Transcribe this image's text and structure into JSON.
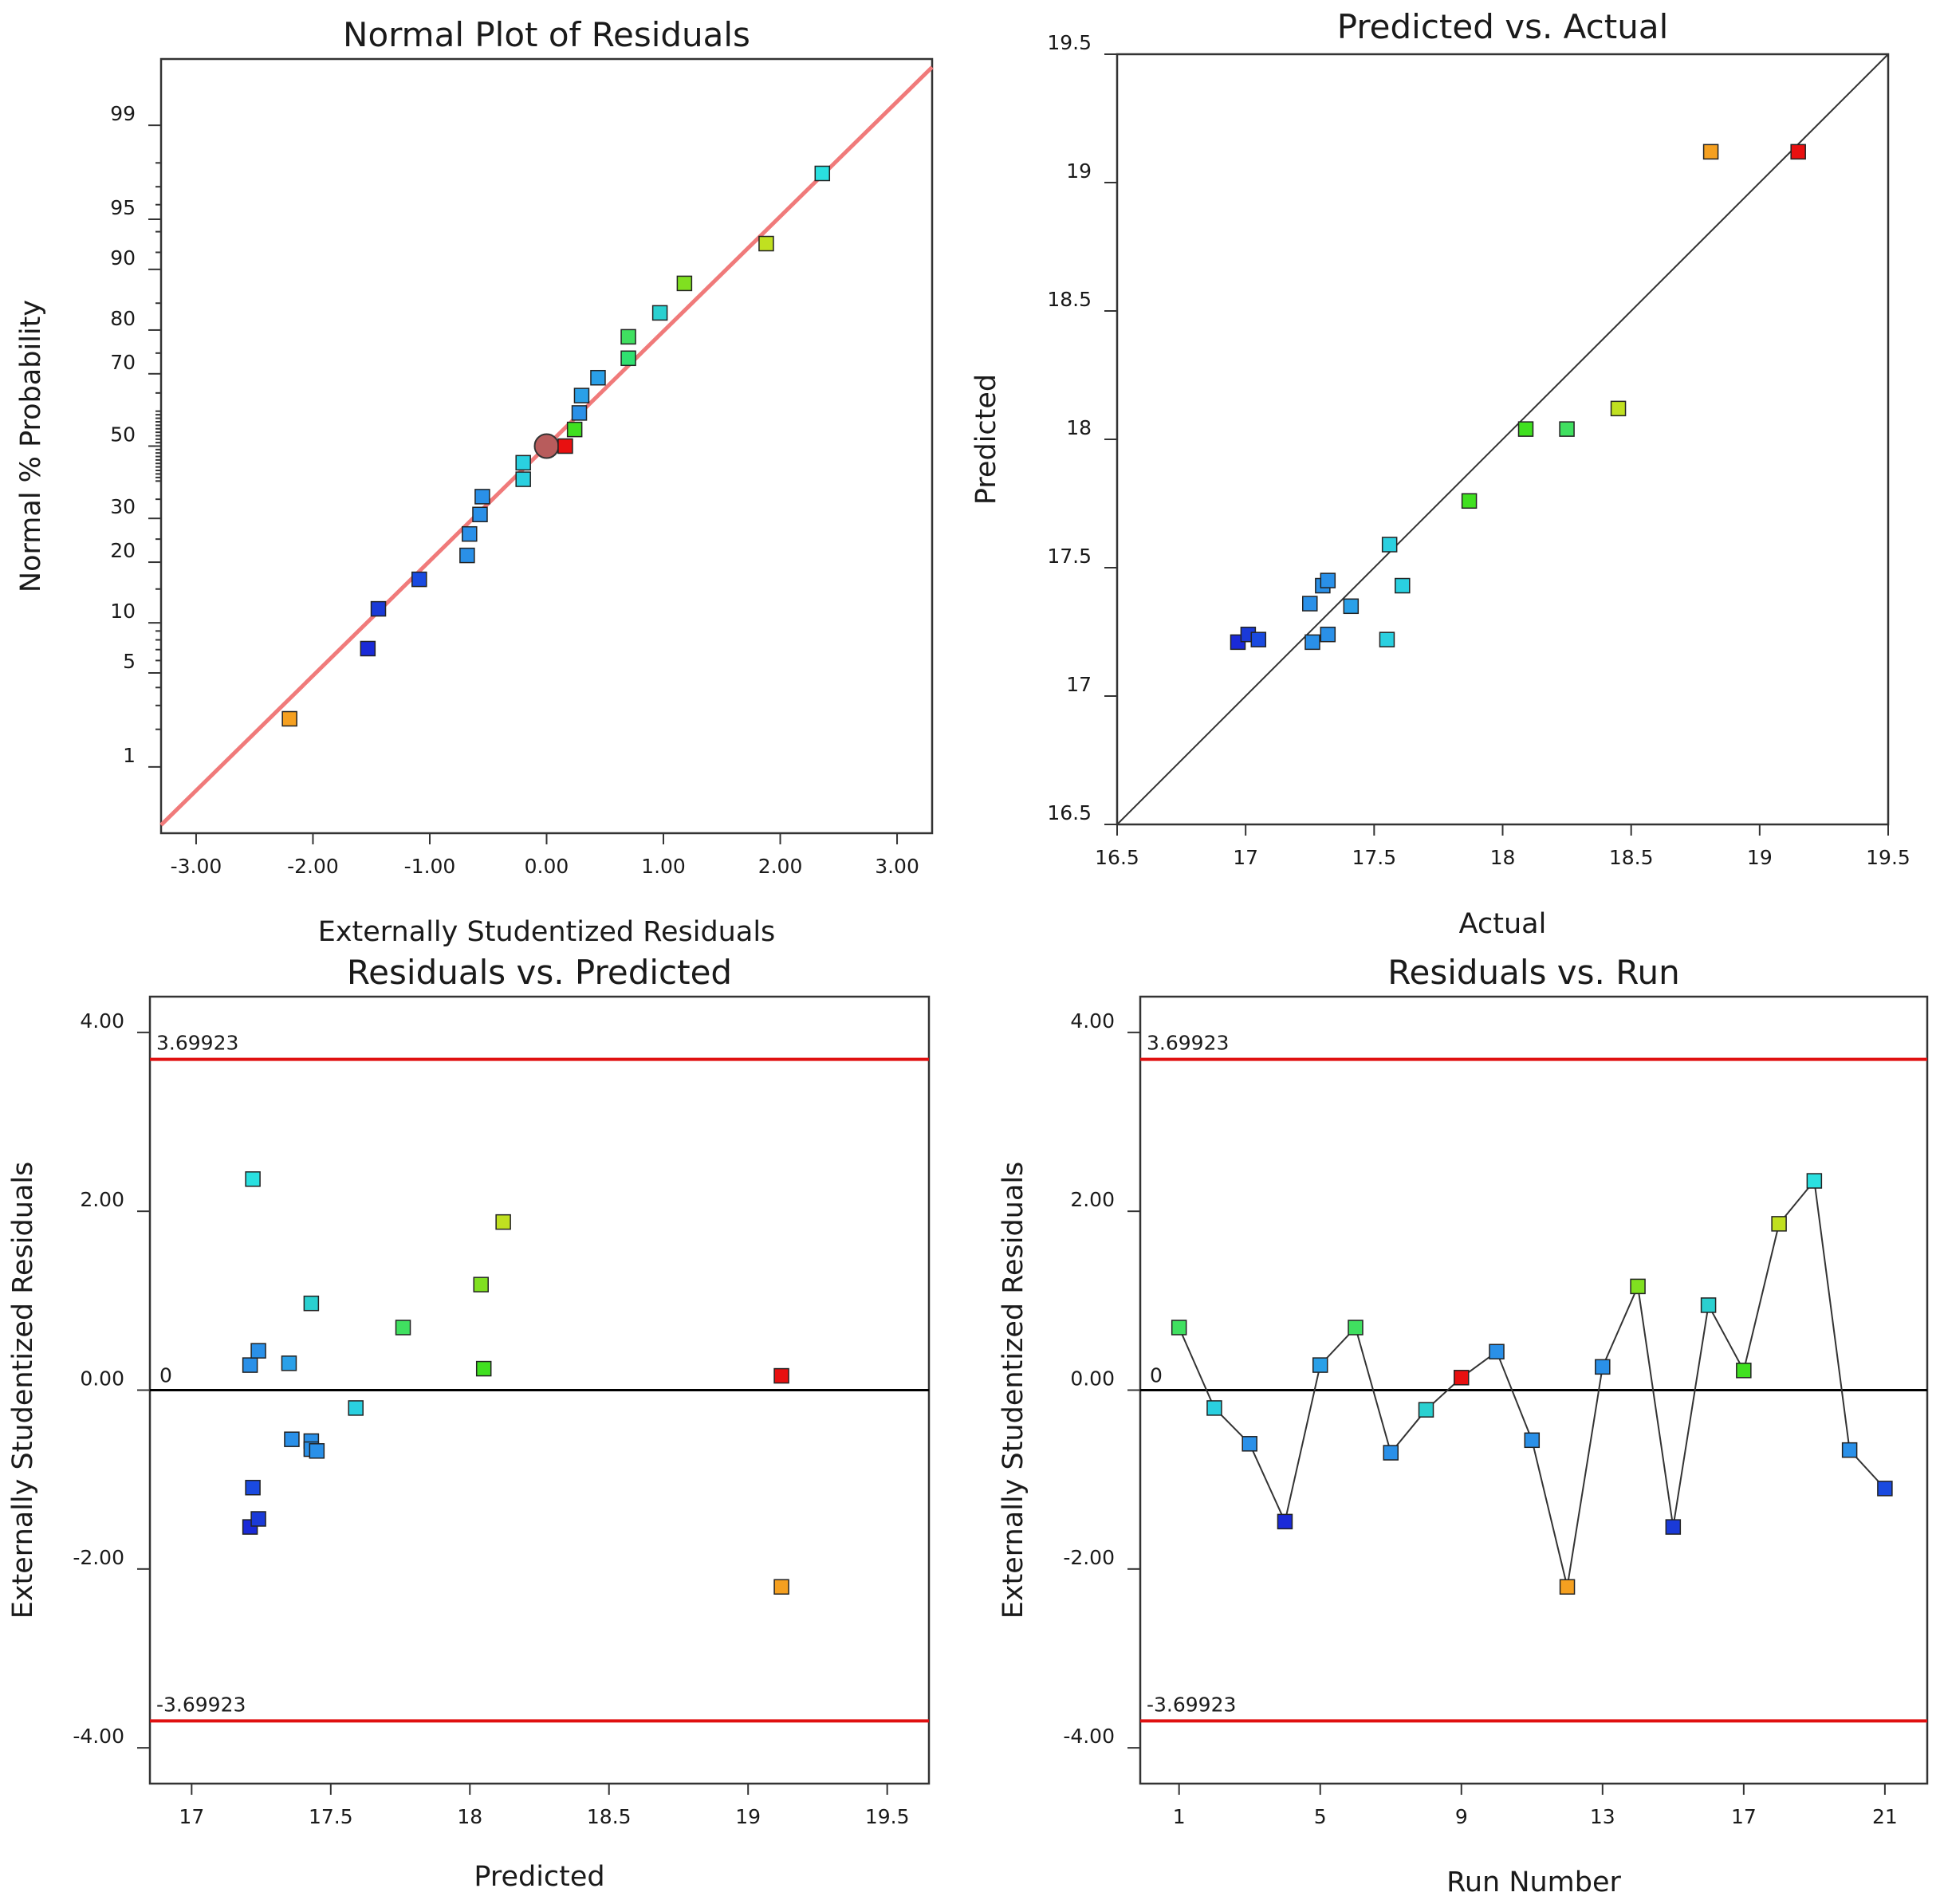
{
  "chart_data": [
    {
      "type": "scatter",
      "title": "Normal Plot of Residuals",
      "xlabel": "Externally Studentized Residuals",
      "ylabel": "Normal % Probability",
      "xlim": [
        -3.3,
        3.3
      ],
      "x_ticks": [
        "-3.00",
        "-2.00",
        "-1.00",
        "0.00",
        "1.00",
        "2.00",
        "3.00"
      ],
      "x_tick_values": [
        -3,
        -2,
        -1,
        0,
        1,
        2,
        3
      ],
      "y_scale": "normal-probability",
      "y_ticks": [
        "1",
        "5",
        "10",
        "20",
        "30",
        "50",
        "70",
        "80",
        "90",
        "95",
        "99"
      ],
      "y_tick_values": [
        1,
        5,
        10,
        20,
        30,
        50,
        70,
        80,
        90,
        95,
        99
      ],
      "reference_line": {
        "color": "#f07a7a",
        "from": [
          -3.3,
          0.3
        ],
        "to": [
          3.3,
          99.7
        ]
      },
      "center_marker": {
        "x": 0,
        "y": 50,
        "color": "#b85c5c"
      },
      "points": [
        {
          "x": -2.2,
          "y": 2.4,
          "color": "#f5a020"
        },
        {
          "x": -1.53,
          "y": 7.1,
          "color": "#1a2ad8"
        },
        {
          "x": -1.44,
          "y": 11.9,
          "color": "#1a3ad8"
        },
        {
          "x": -1.09,
          "y": 16.7,
          "color": "#1a4ae0"
        },
        {
          "x": -0.68,
          "y": 21.4,
          "color": "#2a90e8"
        },
        {
          "x": -0.66,
          "y": 26.2,
          "color": "#2a90e8"
        },
        {
          "x": -0.57,
          "y": 31.0,
          "color": "#2a90e8"
        },
        {
          "x": -0.55,
          "y": 35.7,
          "color": "#2a90e8"
        },
        {
          "x": -0.2,
          "y": 40.5,
          "color": "#2ad0e0"
        },
        {
          "x": -0.2,
          "y": 45.2,
          "color": "#2ad0e0"
        },
        {
          "x": 0.16,
          "y": 50.0,
          "color": "#e81010"
        },
        {
          "x": 0.24,
          "y": 54.8,
          "color": "#40e020"
        },
        {
          "x": 0.28,
          "y": 59.5,
          "color": "#2a90e8"
        },
        {
          "x": 0.3,
          "y": 64.3,
          "color": "#2aa0e8"
        },
        {
          "x": 0.44,
          "y": 69.0,
          "color": "#2aa0e8"
        },
        {
          "x": 0.7,
          "y": 73.8,
          "color": "#30e070"
        },
        {
          "x": 0.7,
          "y": 78.6,
          "color": "#40e060"
        },
        {
          "x": 0.97,
          "y": 83.3,
          "color": "#2ad0d0"
        },
        {
          "x": 1.18,
          "y": 88.1,
          "color": "#80e020"
        },
        {
          "x": 1.88,
          "y": 92.9,
          "color": "#c0e020"
        },
        {
          "x": 2.36,
          "y": 97.6,
          "color": "#2ae0e0"
        }
      ]
    },
    {
      "type": "scatter",
      "title": "Predicted vs. Actual",
      "xlabel": "Actual",
      "ylabel": "Predicted",
      "xlim": [
        16.5,
        19.5
      ],
      "ylim": [
        16.5,
        19.5
      ],
      "x_ticks": [
        "16.5",
        "17",
        "17.5",
        "18",
        "18.5",
        "19",
        "19.5"
      ],
      "x_tick_values": [
        16.5,
        17,
        17.5,
        18,
        18.5,
        19,
        19.5
      ],
      "y_ticks": [
        "16.5",
        "17",
        "17.5",
        "18",
        "18.5",
        "19",
        "19.5"
      ],
      "y_tick_values": [
        16.5,
        17,
        17.5,
        18,
        18.5,
        19,
        19.5
      ],
      "reference_line": {
        "color": "#333333",
        "from": [
          16.5,
          16.5
        ],
        "to": [
          19.5,
          19.5
        ]
      },
      "points": [
        {
          "x": 16.97,
          "y": 17.21,
          "color": "#1a2ad8"
        },
        {
          "x": 17.01,
          "y": 17.24,
          "color": "#1a3ad8"
        },
        {
          "x": 17.05,
          "y": 17.22,
          "color": "#1a4ae0"
        },
        {
          "x": 17.25,
          "y": 17.36,
          "color": "#2a90e8"
        },
        {
          "x": 17.26,
          "y": 17.21,
          "color": "#2a90e8"
        },
        {
          "x": 17.3,
          "y": 17.43,
          "color": "#2a90e8"
        },
        {
          "x": 17.32,
          "y": 17.45,
          "color": "#2a90e8"
        },
        {
          "x": 17.32,
          "y": 17.24,
          "color": "#2a90e8"
        },
        {
          "x": 17.41,
          "y": 17.35,
          "color": "#2aa0e8"
        },
        {
          "x": 17.55,
          "y": 17.22,
          "color": "#2ad0e0"
        },
        {
          "x": 17.56,
          "y": 17.59,
          "color": "#2ad0e0"
        },
        {
          "x": 17.61,
          "y": 17.43,
          "color": "#2ad0e0"
        },
        {
          "x": 17.87,
          "y": 17.76,
          "color": "#40e020"
        },
        {
          "x": 18.09,
          "y": 18.04,
          "color": "#40e020"
        },
        {
          "x": 18.25,
          "y": 18.04,
          "color": "#40e060"
        },
        {
          "x": 18.45,
          "y": 18.12,
          "color": "#c0e020"
        },
        {
          "x": 18.81,
          "y": 19.12,
          "color": "#f5a020"
        },
        {
          "x": 19.15,
          "y": 19.12,
          "color": "#e81010"
        }
      ]
    },
    {
      "type": "scatter",
      "title": "Residuals vs. Predicted",
      "xlabel": "Predicted",
      "ylabel": "Externally Studentized Residuals",
      "xlim": [
        16.85,
        19.65
      ],
      "ylim": [
        -4.4,
        4.4
      ],
      "x_ticks": [
        "17",
        "17.5",
        "18",
        "18.5",
        "19",
        "19.5"
      ],
      "x_tick_values": [
        17,
        17.5,
        18,
        18.5,
        19,
        19.5
      ],
      "y_ticks": [
        "-4.00",
        "-2.00",
        "0.00",
        "2.00",
        "4.00"
      ],
      "y_tick_values": [
        -4,
        -2,
        0,
        2,
        4
      ],
      "zero_line": {
        "value": 0,
        "label": "0",
        "color": "#000000"
      },
      "limit_lines": [
        {
          "value": 3.69923,
          "label": "3.69923",
          "color": "#e01010"
        },
        {
          "value": -3.69923,
          "label": "-3.69923",
          "color": "#e01010"
        }
      ],
      "points": [
        {
          "x": 17.21,
          "y": -1.53,
          "color": "#1a2ad8"
        },
        {
          "x": 17.24,
          "y": -1.44,
          "color": "#1a3ad8"
        },
        {
          "x": 17.22,
          "y": -1.09,
          "color": "#1a4ae0"
        },
        {
          "x": 17.21,
          "y": 0.28,
          "color": "#2a90e8"
        },
        {
          "x": 17.24,
          "y": 0.44,
          "color": "#2a90e8"
        },
        {
          "x": 17.22,
          "y": 2.36,
          "color": "#2ae0e0"
        },
        {
          "x": 17.35,
          "y": 0.3,
          "color": "#2aa0e8"
        },
        {
          "x": 17.36,
          "y": -0.55,
          "color": "#2a90e8"
        },
        {
          "x": 17.43,
          "y": -0.57,
          "color": "#2a90e8"
        },
        {
          "x": 17.43,
          "y": -0.66,
          "color": "#2a90e8"
        },
        {
          "x": 17.45,
          "y": -0.68,
          "color": "#2a90e8"
        },
        {
          "x": 17.43,
          "y": 0.97,
          "color": "#2ad0d0"
        },
        {
          "x": 17.59,
          "y": -0.2,
          "color": "#2ad0e0"
        },
        {
          "x": 17.76,
          "y": 0.7,
          "color": "#40e060"
        },
        {
          "x": 18.04,
          "y": 1.18,
          "color": "#80e020"
        },
        {
          "x": 18.05,
          "y": 0.24,
          "color": "#40e020"
        },
        {
          "x": 18.12,
          "y": 1.88,
          "color": "#c0e020"
        },
        {
          "x": 19.12,
          "y": 0.16,
          "color": "#e81010"
        },
        {
          "x": 19.12,
          "y": -2.2,
          "color": "#f5a020"
        }
      ]
    },
    {
      "type": "line",
      "title": "Residuals vs. Run",
      "xlabel": "Run Number",
      "ylabel": "Externally Studentized Residuals",
      "xlim": [
        -0.1,
        22.2
      ],
      "ylim": [
        -4.4,
        4.4
      ],
      "x_ticks": [
        "1",
        "5",
        "9",
        "13",
        "17",
        "21"
      ],
      "x_tick_values": [
        1,
        5,
        9,
        13,
        17,
        21
      ],
      "y_ticks": [
        "-4.00",
        "-2.00",
        "0.00",
        "2.00",
        "4.00"
      ],
      "y_tick_values": [
        -4,
        -2,
        0,
        2,
        4
      ],
      "zero_line": {
        "value": 0,
        "label": "0",
        "color": "#000000"
      },
      "limit_lines": [
        {
          "value": 3.69923,
          "label": "3.69923",
          "color": "#e01010"
        },
        {
          "value": -3.69923,
          "label": "-3.69923",
          "color": "#e01010"
        }
      ],
      "points": [
        {
          "x": 1,
          "y": 0.7,
          "color": "#40e060"
        },
        {
          "x": 2,
          "y": -0.2,
          "color": "#2ad0e0"
        },
        {
          "x": 3,
          "y": -0.6,
          "color": "#2a90e8"
        },
        {
          "x": 4,
          "y": -1.47,
          "color": "#1a2ad8"
        },
        {
          "x": 5,
          "y": 0.28,
          "color": "#2aa0e8"
        },
        {
          "x": 6,
          "y": 0.7,
          "color": "#40e060"
        },
        {
          "x": 7,
          "y": -0.7,
          "color": "#2a90e8"
        },
        {
          "x": 8,
          "y": -0.22,
          "color": "#2ad0d0"
        },
        {
          "x": 9,
          "y": 0.14,
          "color": "#e81010"
        },
        {
          "x": 10,
          "y": 0.43,
          "color": "#2a90e8"
        },
        {
          "x": 11,
          "y": -0.56,
          "color": "#2a90e8"
        },
        {
          "x": 12,
          "y": -2.2,
          "color": "#f5a020"
        },
        {
          "x": 13,
          "y": 0.26,
          "color": "#2a90e8"
        },
        {
          "x": 14,
          "y": 1.16,
          "color": "#80e020"
        },
        {
          "x": 15,
          "y": -1.53,
          "color": "#1a3ad8"
        },
        {
          "x": 16,
          "y": 0.95,
          "color": "#2ad0d0"
        },
        {
          "x": 17,
          "y": 0.22,
          "color": "#40e020"
        },
        {
          "x": 18,
          "y": 1.86,
          "color": "#c0e020"
        },
        {
          "x": 19,
          "y": 2.34,
          "color": "#2ae0e0"
        },
        {
          "x": 20,
          "y": -0.67,
          "color": "#2a90e8"
        },
        {
          "x": 21,
          "y": -1.1,
          "color": "#1a4ae0"
        }
      ]
    }
  ]
}
